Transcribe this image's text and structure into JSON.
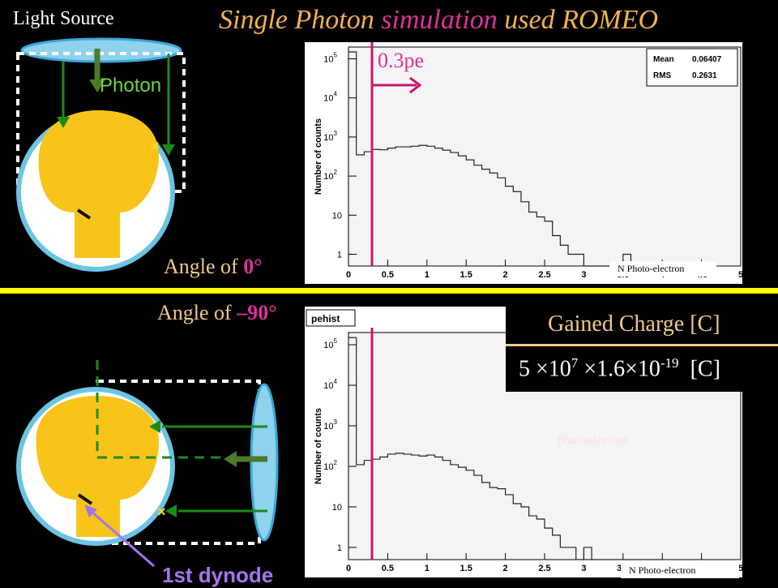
{
  "title": {
    "part1": "Single Photon",
    "part2": "simulation",
    "part3": "used ROMEO"
  },
  "labels": {
    "light_source": "Light Source",
    "photon": "Photon",
    "angle0_prefix": "Angle of ",
    "angle0_value": "0°",
    "angle90_prefix": "Angle of ",
    "angle90_value": "–90°",
    "dynode": "1st dynode",
    "pe_threshold": "0.3pe",
    "photoelectron": "photoelectron",
    "gained_charge": "Gained Charge [C]",
    "formula_a": "5 ×10",
    "formula_a_exp": "7",
    "formula_b": "×1.6×10",
    "formula_b_exp": "-19",
    "formula_unit": "[C]",
    "xlabel_top": "N Photo-electron",
    "xlabel_bottom": "N Photo-electron"
  },
  "colors": {
    "pmt_body": "#f9c41a",
    "pmt_glass": "#6cc4e4",
    "threshold": "#c8156e",
    "photon_arrow": "#1b8a1b"
  },
  "chart_data": [
    {
      "type": "bar",
      "title": "",
      "ylabel": "Number of counts",
      "xlabel": "N Photo-electron",
      "yscale": "log",
      "ylim": [
        0.5,
        200000
      ],
      "xlim": [
        0,
        5
      ],
      "x_ticks": [
        "0",
        "0.5",
        "1",
        "1.5",
        "2",
        "2.5",
        "3",
        "3.5",
        "4",
        "4.5",
        "5"
      ],
      "y_ticks": [
        "1",
        "10",
        "10²",
        "10³",
        "10⁴",
        "10⁵"
      ],
      "stats": {
        "Mean": "0.06407",
        "RMS": "0.2631"
      },
      "threshold": 0.3,
      "bin_width": 0.1,
      "bins_x": [
        0.0,
        0.1,
        0.2,
        0.3,
        0.4,
        0.5,
        0.6,
        0.7,
        0.8,
        0.9,
        1.0,
        1.1,
        1.2,
        1.3,
        1.4,
        1.5,
        1.6,
        1.7,
        1.8,
        1.9,
        2.0,
        2.1,
        2.2,
        2.3,
        2.4,
        2.5,
        2.6,
        2.7,
        2.8,
        2.9,
        3.0,
        3.1,
        3.2,
        3.3,
        3.4,
        3.5,
        3.6,
        3.7,
        3.8,
        3.9
      ],
      "bins_y": [
        150000,
        350,
        420,
        480,
        470,
        520,
        560,
        560,
        580,
        610,
        580,
        520,
        460,
        400,
        330,
        260,
        190,
        150,
        120,
        90,
        55,
        40,
        22,
        12,
        9,
        7,
        3,
        1.7,
        1,
        1,
        0,
        0,
        0,
        0,
        0,
        1,
        0,
        0,
        0,
        0
      ]
    },
    {
      "type": "bar",
      "title": "pehist",
      "ylabel": "Number of counts",
      "xlabel": "N Photo-electron",
      "yscale": "log",
      "ylim": [
        0.5,
        200000
      ],
      "xlim": [
        0,
        5
      ],
      "x_ticks": [
        "0",
        "0.5",
        "1",
        "1.5",
        "2",
        "2.5",
        "3",
        "3.5",
        "4",
        "4.5",
        "5"
      ],
      "y_ticks": [
        "1",
        "10",
        "10²",
        "10³",
        "10⁴",
        "10⁵"
      ],
      "threshold": 0.3,
      "bin_width": 0.1,
      "bins_x": [
        0.0,
        0.1,
        0.2,
        0.3,
        0.4,
        0.5,
        0.6,
        0.7,
        0.8,
        0.9,
        1.0,
        1.1,
        1.2,
        1.3,
        1.4,
        1.5,
        1.6,
        1.7,
        1.8,
        1.9,
        2.0,
        2.1,
        2.2,
        2.3,
        2.4,
        2.5,
        2.6,
        2.7,
        2.8,
        2.9,
        3.0,
        3.1,
        3.2,
        3.3,
        3.4,
        3.5,
        3.6,
        3.7,
        3.8,
        3.9
      ],
      "bins_y": [
        150000,
        110,
        140,
        150,
        170,
        200,
        210,
        200,
        190,
        180,
        190,
        170,
        140,
        110,
        95,
        80,
        60,
        40,
        30,
        28,
        20,
        12,
        10,
        6,
        5,
        3,
        2,
        1,
        1,
        0,
        1,
        0,
        0,
        0,
        0,
        0,
        0,
        0,
        0,
        0
      ]
    }
  ]
}
